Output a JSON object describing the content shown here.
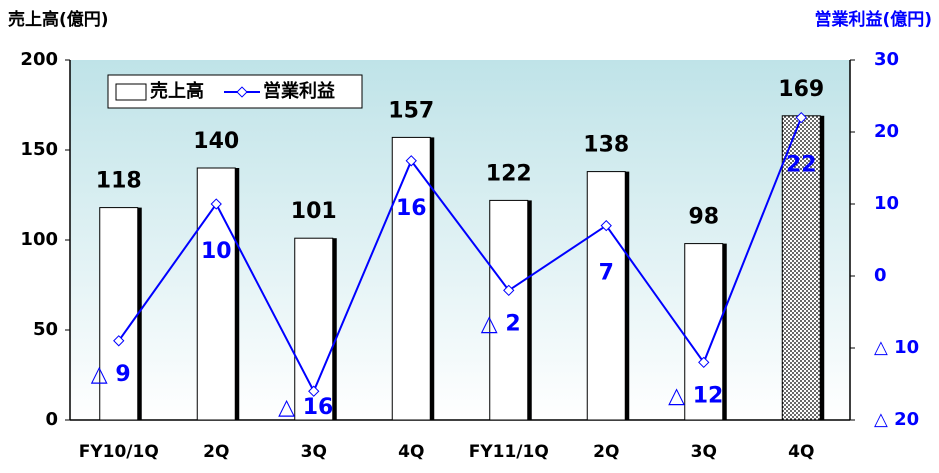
{
  "chart_data": {
    "type": "bar_line",
    "y_axis_label": "売上高(億円)",
    "y2_axis_label": "営業利益(億円)",
    "categories": [
      "FY10/1Q",
      "2Q",
      "3Q",
      "4Q",
      "FY11/1Q",
      "2Q",
      "3Q",
      "4Q"
    ],
    "series": [
      {
        "name": "売上高",
        "color": "#ffffff",
        "values": [
          118,
          140,
          101,
          157,
          122,
          138,
          98,
          169
        ]
      },
      {
        "name": "営業利益",
        "color": "#0000ff",
        "axis": "y2",
        "values": [
          -9,
          10,
          -16,
          16,
          -2,
          7,
          -12,
          22
        ],
        "value_labels": [
          "△ 9",
          "10",
          "△ 16",
          "16",
          "△ 2",
          "7",
          "△ 12",
          "22"
        ]
      }
    ],
    "ylim": [
      0,
      200
    ],
    "yticks": [
      0,
      50,
      100,
      150,
      200
    ],
    "y2lim": [
      -20,
      30
    ],
    "y2ticks": [
      {
        "value": -20,
        "label": "△ 20"
      },
      {
        "value": -10,
        "label": "△ 10"
      },
      0,
      10,
      20,
      30
    ],
    "legend": "upper left"
  }
}
